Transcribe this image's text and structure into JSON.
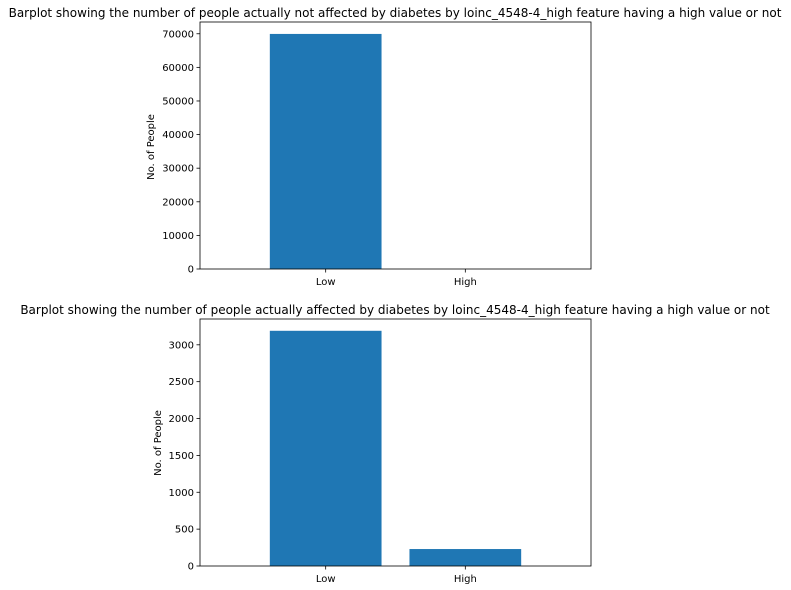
{
  "colors": {
    "bar": "#1f77b4",
    "axis": "#000000",
    "background": "#ffffff"
  },
  "chart_data": [
    {
      "type": "bar",
      "title": "Barplot showing the number of people actually not affected by diabetes by loinc_4548-4_high feature having a high value or not",
      "xlabel": "",
      "ylabel": "No. of People",
      "categories": [
        "Low",
        "High"
      ],
      "values": [
        69950,
        0
      ],
      "ylim": [
        0,
        73500
      ],
      "yticks": [
        0,
        10000,
        20000,
        30000,
        40000,
        50000,
        60000,
        70000
      ],
      "grid": false
    },
    {
      "type": "bar",
      "title": "Barplot showing the number of people actually affected by diabetes by loinc_4548-4_high feature having a high value or not",
      "xlabel": "",
      "ylabel": "No. of People",
      "categories": [
        "Low",
        "High"
      ],
      "values": [
        3190,
        230
      ],
      "ylim": [
        0,
        3350
      ],
      "yticks": [
        0,
        500,
        1000,
        1500,
        2000,
        2500,
        3000
      ],
      "grid": false
    }
  ]
}
